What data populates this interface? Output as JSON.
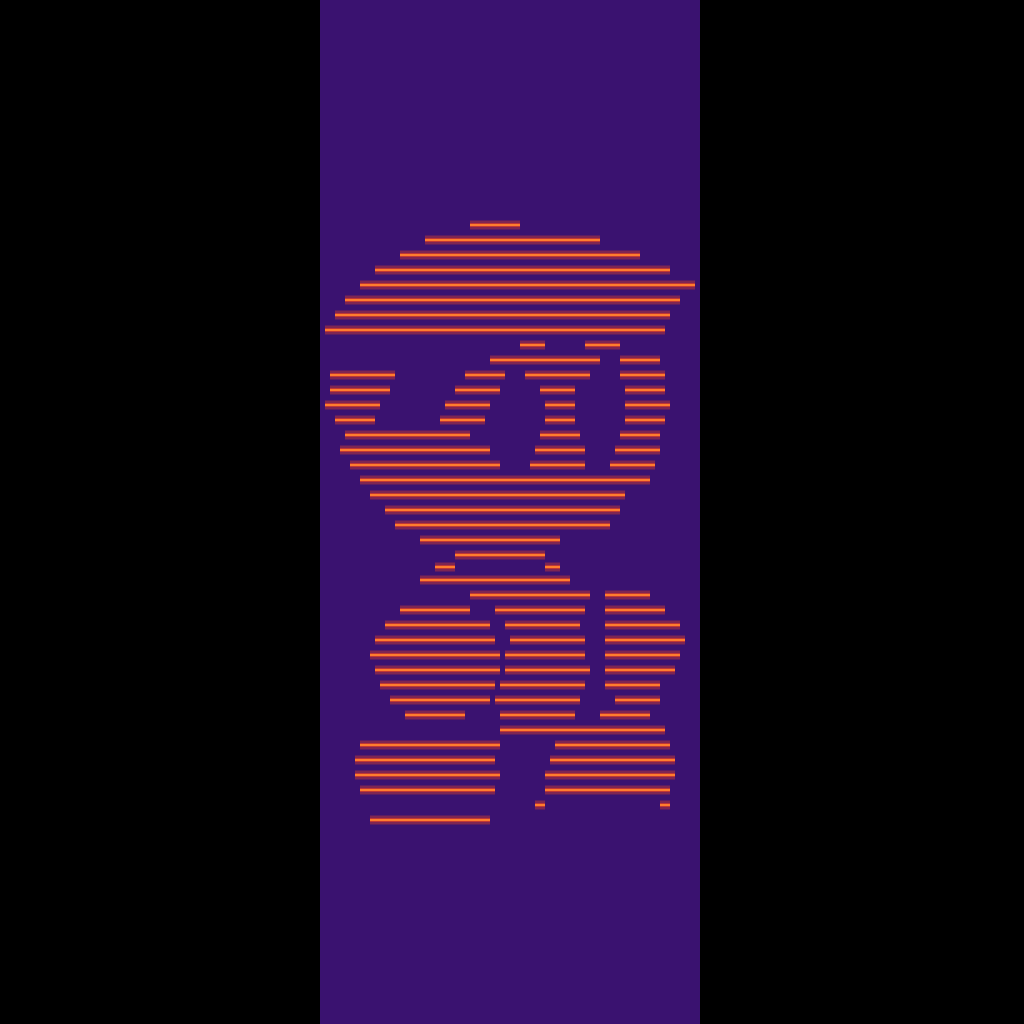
{
  "chart_data": {
    "type": "spectrogram",
    "tick_labels": false,
    "grid": false,
    "xlim": [
      0,
      1024
    ],
    "ylim": [
      1024,
      0
    ],
    "band": [
      320,
      700
    ],
    "color": "#ff4a1c",
    "segments": [
      {
        "y": 225,
        "x": [
          470,
          520
        ]
      },
      {
        "y": 240,
        "x": [
          425,
          600
        ]
      },
      {
        "y": 255,
        "x": [
          400,
          640
        ]
      },
      {
        "y": 270,
        "x": [
          375,
          670
        ]
      },
      {
        "y": 285,
        "x": [
          360,
          695
        ]
      },
      {
        "y": 300,
        "x": [
          345,
          680
        ]
      },
      {
        "y": 315,
        "x": [
          335,
          670
        ]
      },
      {
        "y": 330,
        "x": [
          325,
          665
        ]
      },
      {
        "y": 345,
        "x": [
          520,
          545
        ]
      },
      {
        "y": 345,
        "x": [
          585,
          620
        ]
      },
      {
        "y": 360,
        "x": [
          490,
          600
        ]
      },
      {
        "y": 360,
        "x": [
          620,
          660
        ]
      },
      {
        "y": 375,
        "x": [
          330,
          395
        ]
      },
      {
        "y": 375,
        "x": [
          465,
          505
        ]
      },
      {
        "y": 375,
        "x": [
          525,
          590
        ]
      },
      {
        "y": 375,
        "x": [
          620,
          665
        ]
      },
      {
        "y": 390,
        "x": [
          330,
          390
        ]
      },
      {
        "y": 390,
        "x": [
          455,
          500
        ]
      },
      {
        "y": 390,
        "x": [
          540,
          575
        ]
      },
      {
        "y": 390,
        "x": [
          625,
          665
        ]
      },
      {
        "y": 405,
        "x": [
          325,
          380
        ]
      },
      {
        "y": 405,
        "x": [
          445,
          490
        ]
      },
      {
        "y": 405,
        "x": [
          545,
          575
        ]
      },
      {
        "y": 405,
        "x": [
          625,
          670
        ]
      },
      {
        "y": 420,
        "x": [
          335,
          375
        ]
      },
      {
        "y": 420,
        "x": [
          440,
          485
        ]
      },
      {
        "y": 420,
        "x": [
          545,
          575
        ]
      },
      {
        "y": 420,
        "x": [
          625,
          665
        ]
      },
      {
        "y": 435,
        "x": [
          345,
          470
        ]
      },
      {
        "y": 435,
        "x": [
          540,
          580
        ]
      },
      {
        "y": 435,
        "x": [
          620,
          660
        ]
      },
      {
        "y": 450,
        "x": [
          340,
          490
        ]
      },
      {
        "y": 450,
        "x": [
          535,
          585
        ]
      },
      {
        "y": 450,
        "x": [
          615,
          660
        ]
      },
      {
        "y": 465,
        "x": [
          350,
          500
        ]
      },
      {
        "y": 465,
        "x": [
          530,
          585
        ]
      },
      {
        "y": 465,
        "x": [
          610,
          655
        ]
      },
      {
        "y": 480,
        "x": [
          360,
          650
        ]
      },
      {
        "y": 495,
        "x": [
          370,
          625
        ]
      },
      {
        "y": 510,
        "x": [
          385,
          620
        ]
      },
      {
        "y": 525,
        "x": [
          395,
          610
        ]
      },
      {
        "y": 540,
        "x": [
          420,
          560
        ]
      },
      {
        "y": 555,
        "x": [
          455,
          545
        ]
      },
      {
        "y": 567,
        "x": [
          435,
          455
        ]
      },
      {
        "y": 567,
        "x": [
          545,
          560
        ]
      },
      {
        "y": 580,
        "x": [
          420,
          570
        ]
      },
      {
        "y": 595,
        "x": [
          470,
          590
        ]
      },
      {
        "y": 595,
        "x": [
          605,
          650
        ]
      },
      {
        "y": 610,
        "x": [
          400,
          470
        ]
      },
      {
        "y": 610,
        "x": [
          495,
          585
        ]
      },
      {
        "y": 610,
        "x": [
          605,
          665
        ]
      },
      {
        "y": 625,
        "x": [
          385,
          490
        ]
      },
      {
        "y": 625,
        "x": [
          505,
          580
        ]
      },
      {
        "y": 625,
        "x": [
          605,
          680
        ]
      },
      {
        "y": 640,
        "x": [
          375,
          495
        ]
      },
      {
        "y": 640,
        "x": [
          510,
          585
        ]
      },
      {
        "y": 640,
        "x": [
          605,
          685
        ]
      },
      {
        "y": 655,
        "x": [
          370,
          500
        ]
      },
      {
        "y": 655,
        "x": [
          505,
          585
        ]
      },
      {
        "y": 655,
        "x": [
          605,
          680
        ]
      },
      {
        "y": 670,
        "x": [
          375,
          500
        ]
      },
      {
        "y": 670,
        "x": [
          505,
          590
        ]
      },
      {
        "y": 670,
        "x": [
          605,
          675
        ]
      },
      {
        "y": 685,
        "x": [
          380,
          495
        ]
      },
      {
        "y": 685,
        "x": [
          500,
          585
        ]
      },
      {
        "y": 685,
        "x": [
          605,
          660
        ]
      },
      {
        "y": 700,
        "x": [
          390,
          490
        ]
      },
      {
        "y": 700,
        "x": [
          495,
          580
        ]
      },
      {
        "y": 700,
        "x": [
          615,
          660
        ]
      },
      {
        "y": 715,
        "x": [
          405,
          465
        ]
      },
      {
        "y": 715,
        "x": [
          500,
          575
        ]
      },
      {
        "y": 715,
        "x": [
          600,
          650
        ]
      },
      {
        "y": 730,
        "x": [
          500,
          560
        ]
      },
      {
        "y": 730,
        "x": [
          560,
          665
        ]
      },
      {
        "y": 745,
        "x": [
          360,
          500
        ]
      },
      {
        "y": 745,
        "x": [
          555,
          670
        ]
      },
      {
        "y": 760,
        "x": [
          355,
          495
        ]
      },
      {
        "y": 760,
        "x": [
          550,
          675
        ]
      },
      {
        "y": 775,
        "x": [
          355,
          500
        ]
      },
      {
        "y": 775,
        "x": [
          545,
          675
        ]
      },
      {
        "y": 790,
        "x": [
          360,
          495
        ]
      },
      {
        "y": 790,
        "x": [
          545,
          670
        ]
      },
      {
        "y": 805,
        "x": [
          535,
          545
        ]
      },
      {
        "y": 805,
        "x": [
          660,
          670
        ]
      },
      {
        "y": 820,
        "x": [
          370,
          490
        ]
      }
    ]
  }
}
